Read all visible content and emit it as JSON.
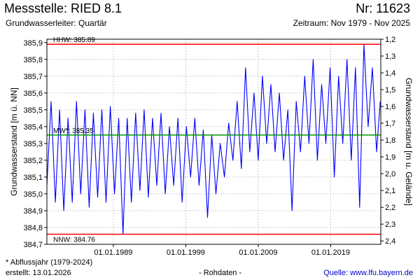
{
  "header": {
    "title": "Messstelle: RIED 8.1",
    "number": "Nr: 11623",
    "aquifer": "Grundwasserleiter: Quartär",
    "period": "Zeitraum: Nov 1979 - Nov 2025"
  },
  "footer": {
    "note": "* Abflussjahr (1979-2024)",
    "created": "erstellt:  13.01.2026",
    "raw": "- Rohdaten -",
    "source_label": "Quelle: ",
    "source_link": "www.lfu.bayern.de"
  },
  "colors": {
    "series": "#0000ff",
    "extreme_lines": "#ff0000",
    "mean_line": "#009900",
    "grid": "#cccccc"
  },
  "chart_data": {
    "type": "line",
    "xlabel": "",
    "ylabel": "Grundwasserstand [m ü. NN]",
    "ylabel_right": "Grundwasserstand [m u. Gelände]",
    "xlim": [
      "1979-11-01",
      "2025-11-30"
    ],
    "ylim": [
      384.7,
      385.92
    ],
    "ylim_right": [
      2.42,
      1.2
    ],
    "grid": true,
    "x_ticks": [
      "01.01.1989",
      "01.01.1999",
      "01.01.2009",
      "01.01.2019"
    ],
    "y_ticks": [
      "384,7",
      "384,8",
      "384,9",
      "385,0",
      "385,1",
      "385,2",
      "385,3",
      "385,4",
      "385,5",
      "385,6",
      "385,7",
      "385,8",
      "385,9"
    ],
    "y_ticks_right": [
      "1,2",
      "1,3",
      "1,4",
      "1,5",
      "1,6",
      "1,7",
      "1,8",
      "1,9",
      "2,0",
      "2,1",
      "2,2",
      "2,3",
      "2,4"
    ],
    "reference_lines": [
      {
        "label": "HHW: 385.89",
        "value": 385.89,
        "kind": "extreme"
      },
      {
        "label": "MW*: 385.35",
        "value": 385.35,
        "kind": "mean"
      },
      {
        "label": "NNW: 384.76",
        "value": 384.76,
        "kind": "extreme"
      }
    ],
    "series": [
      {
        "x": [
          "1979-11",
          "1980-06",
          "1981-01",
          "1981-08",
          "1982-03",
          "1982-10",
          "1983-05",
          "1983-12",
          "1984-07",
          "1985-02",
          "1985-09",
          "1986-04",
          "1986-11",
          "1987-06",
          "1988-01",
          "1988-08",
          "1989-03",
          "1989-10",
          "1990-05",
          "1990-12",
          "1991-07",
          "1992-02",
          "1992-09",
          "1993-04",
          "1993-11",
          "1994-06",
          "1995-01",
          "1995-08",
          "1996-03",
          "1996-10",
          "1997-05",
          "1997-12",
          "1998-07",
          "1999-02",
          "1999-09",
          "2000-04",
          "2000-11",
          "2001-06",
          "2002-01",
          "2002-08",
          "2003-03",
          "2003-10",
          "2004-05",
          "2004-12",
          "2005-07",
          "2006-02",
          "2006-09",
          "2007-04",
          "2007-11",
          "2008-06",
          "2009-01",
          "2009-08",
          "2010-03",
          "2010-10",
          "2011-05",
          "2011-12",
          "2012-07",
          "2013-02",
          "2013-09",
          "2014-04",
          "2014-11",
          "2015-06",
          "2016-01",
          "2016-08",
          "2017-03",
          "2017-10",
          "2018-05",
          "2018-12",
          "2019-07",
          "2020-02",
          "2020-09",
          "2021-04",
          "2021-11",
          "2022-06",
          "2023-01",
          "2023-08",
          "2024-03",
          "2024-10",
          "2025-05",
          "2025-11"
        ],
        "values": [
          385.05,
          385.55,
          384.95,
          385.5,
          384.9,
          385.45,
          384.95,
          385.55,
          385.0,
          385.5,
          384.92,
          385.48,
          384.98,
          385.5,
          384.95,
          385.52,
          385.0,
          385.45,
          384.76,
          385.45,
          384.95,
          385.48,
          385.02,
          385.5,
          384.98,
          385.45,
          385.05,
          385.48,
          385.0,
          385.4,
          385.05,
          385.45,
          384.95,
          385.4,
          385.1,
          385.45,
          385.05,
          385.38,
          384.86,
          385.35,
          385.0,
          385.3,
          385.1,
          385.42,
          385.2,
          385.55,
          385.15,
          385.75,
          385.25,
          385.6,
          385.2,
          385.7,
          385.3,
          385.65,
          385.25,
          385.6,
          385.2,
          385.5,
          384.9,
          385.55,
          385.25,
          385.7,
          385.3,
          385.8,
          385.2,
          385.65,
          385.3,
          385.75,
          385.1,
          385.7,
          385.3,
          385.8,
          385.2,
          385.75,
          384.92,
          385.89,
          385.4,
          385.75,
          385.25,
          385.55
        ]
      }
    ]
  }
}
